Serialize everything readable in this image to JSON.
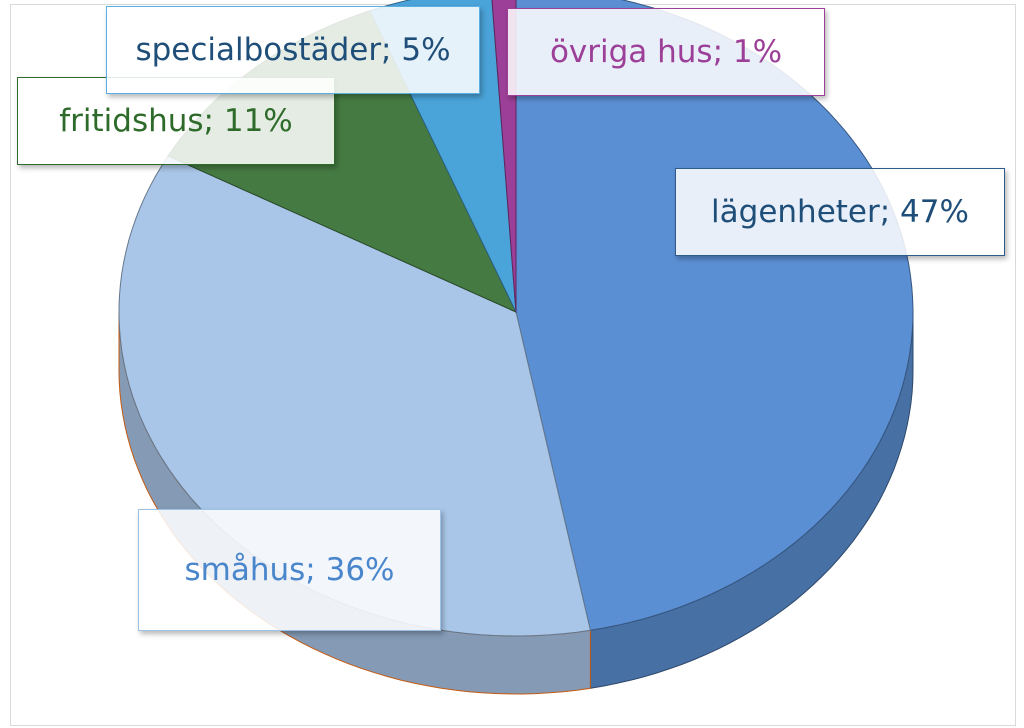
{
  "chart_data": {
    "type": "pie",
    "title": "",
    "legend": "none",
    "slices": [
      {
        "label": "lägenheter",
        "value": 47,
        "data_label": "lägenheter; 47%",
        "color": "#5b8fd4",
        "text_color": "#1f4e79",
        "border_color": "#2e5c8a"
      },
      {
        "label": "småhus",
        "value": 36,
        "data_label": "småhus; 36%",
        "color": "#a9c6e8",
        "text_color": "#4a86cc",
        "border_color": "#9cc2e5"
      },
      {
        "label": "fritidshus",
        "value": 11,
        "data_label": "fritidshus; 11%",
        "color": "#457b42",
        "text_color": "#2e6b2a",
        "border_color": "#2e6b2a"
      },
      {
        "label": "specialbostäder",
        "value": 5,
        "data_label": "specialbostäder; 5%",
        "color": "#4aa3d9",
        "text_color": "#1f4e79",
        "border_color": "#5ab0e0"
      },
      {
        "label": "övriga hus",
        "value": 1,
        "data_label": "övriga hus; 1%",
        "color": "#9c3f98",
        "text_color": "#9c3f98",
        "border_color": "#9c3f98"
      }
    ]
  }
}
